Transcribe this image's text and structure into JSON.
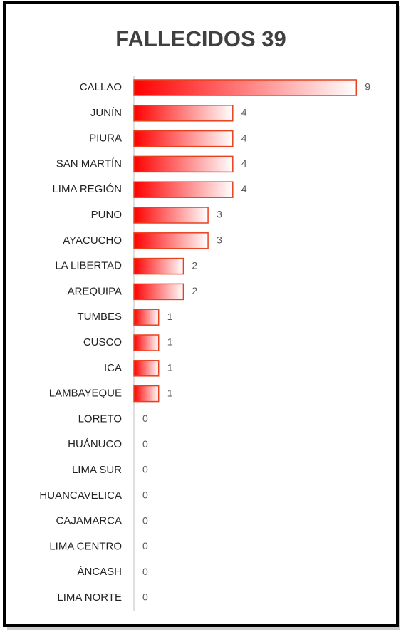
{
  "chart_data": {
    "type": "bar",
    "orientation": "horizontal",
    "title": "FALLECIDOS 39",
    "categories": [
      "CALLAO",
      "JUNÍN",
      "PIURA",
      "SAN MARTÍN",
      "LIMA REGIÓN",
      "PUNO",
      "AYACUCHO",
      "LA LIBERTAD",
      "AREQUIPA",
      "TUMBES",
      "CUSCO",
      "ICA",
      "LAMBAYEQUE",
      "LORETO",
      "HUÁNUCO",
      "LIMA SUR",
      "HUANCAVELICA",
      "CAJAMARCA",
      "LIMA CENTRO",
      "ÁNCASH",
      "LIMA NORTE"
    ],
    "values": [
      9,
      4,
      4,
      4,
      4,
      3,
      3,
      2,
      2,
      1,
      1,
      1,
      1,
      0,
      0,
      0,
      0,
      0,
      0,
      0,
      0
    ],
    "color": "#ff0000",
    "edge_color": "#e8401c"
  }
}
